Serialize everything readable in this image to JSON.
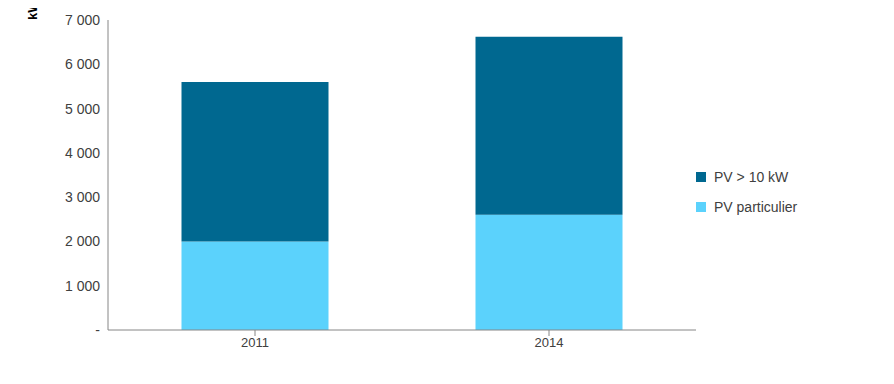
{
  "chart_data": {
    "type": "bar",
    "stacked": true,
    "y_label": "kW",
    "categories": [
      "2011",
      "2014"
    ],
    "series": [
      {
        "name": "PV particulier",
        "color": "#5bd2fc",
        "values": [
          2000,
          2600
        ]
      },
      {
        "name": "PV > 10 kW",
        "color": "#006890",
        "values": [
          3600,
          4020
        ]
      }
    ],
    "ylim": [
      0,
      7000
    ],
    "yticks": [
      {
        "value": 0,
        "label": "-"
      },
      {
        "value": 1000,
        "label": "1 000"
      },
      {
        "value": 2000,
        "label": "2 000"
      },
      {
        "value": 3000,
        "label": "3 000"
      },
      {
        "value": 4000,
        "label": "4 000"
      },
      {
        "value": 5000,
        "label": "5 000"
      },
      {
        "value": 6000,
        "label": "6 000"
      },
      {
        "value": 7000,
        "label": "7 000"
      }
    ],
    "grid": false,
    "legend": "right"
  }
}
